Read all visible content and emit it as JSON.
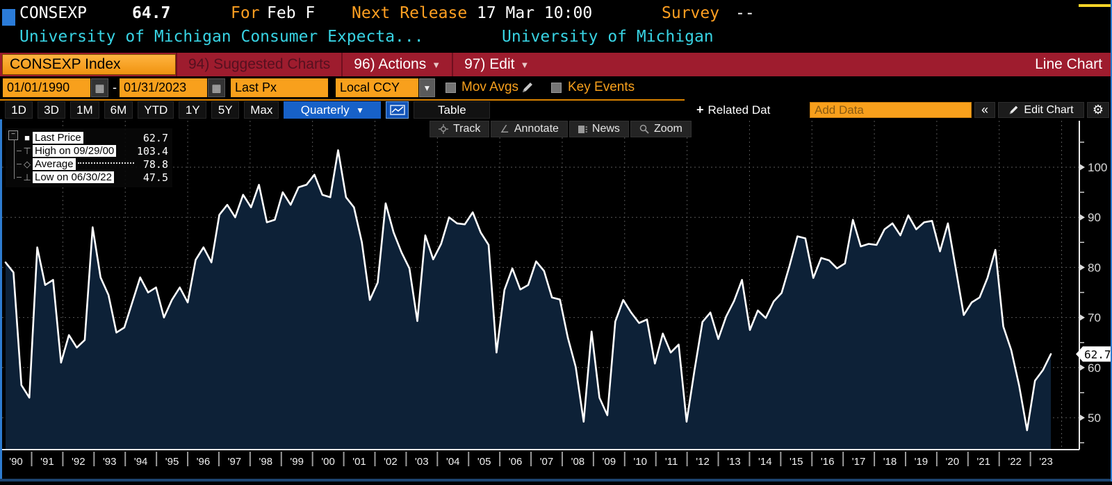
{
  "header": {
    "ticker": "CONSEXP",
    "last_value": "64.7",
    "for_label": "For",
    "for_value": "Feb F",
    "next_release_label": "Next Release",
    "next_release_value": "17 Mar 10:00",
    "survey_label": "Survey",
    "survey_value": "--",
    "description": "University of Michigan Consumer Expecta...",
    "source": "University of Michigan"
  },
  "command_bar": {
    "security_button": "CONSEXP Index",
    "suggested_charts": "94) Suggested Charts",
    "actions": "96) Actions",
    "edit": "97) Edit",
    "chart_type": "Line Chart"
  },
  "controls": {
    "start_date": "01/01/1990",
    "dash": "-",
    "end_date": "01/31/2023",
    "price_field": "Last Px",
    "currency": "Local CCY",
    "mov_avgs_label": "Mov Avgs",
    "key_events_label": "Key Events"
  },
  "toolbar": {
    "periods": [
      "1D",
      "3D",
      "1M",
      "6M",
      "YTD",
      "1Y",
      "5Y",
      "Max"
    ],
    "frequency": "Quarterly",
    "frequency_arrow": "▼",
    "table_label": "Table",
    "related_data_label": "Related Dat",
    "add_data_placeholder": "Add Data",
    "collapse_label": "«",
    "edit_chart_label": "Edit Chart"
  },
  "chart_tools": [
    "Track",
    "Annotate",
    "News",
    "Zoom"
  ],
  "legend": {
    "items": [
      {
        "label": "Last Price",
        "value": "62.7"
      },
      {
        "label": "High on 09/29/00",
        "value": "103.4"
      },
      {
        "label": "Average",
        "value": "78.8"
      },
      {
        "label": "Low on 06/30/22",
        "value": "47.5"
      }
    ]
  },
  "chart_data": {
    "type": "area",
    "title": "CONSEXP Index - University of Michigan Consumer Expectations",
    "frequency": "quarterly",
    "x_start": "1990-Q1",
    "x_end": "2023-Q1",
    "values": [
      81,
      79,
      56.5,
      54,
      84,
      76.5,
      77.5,
      61,
      66.5,
      64,
      65.5,
      88,
      78,
      74.5,
      67,
      68,
      73,
      78,
      75,
      76,
      70,
      73.5,
      76,
      73,
      81.5,
      84,
      81,
      90.5,
      92.5,
      90,
      94.5,
      92,
      96.5,
      89,
      89.5,
      95,
      92.5,
      96,
      96.5,
      98.5,
      94.5,
      94,
      103.4,
      94,
      92,
      85,
      73.5,
      77,
      92.8,
      87,
      83,
      79.8,
      69.3,
      86.4,
      81.6,
      84.7,
      90,
      88.8,
      88.6,
      91,
      87,
      84.5,
      63,
      75.5,
      79.8,
      75.6,
      76.5,
      81.2,
      79.3,
      74,
      73.6,
      66,
      60.1,
      49.2,
      67.2,
      54,
      50.5,
      69.2,
      73.5,
      71,
      68.9,
      69.6,
      60.8,
      66.8,
      63,
      64.6,
      49.2,
      59.5,
      69.1,
      71,
      65.7,
      70.2,
      73.3,
      77.5,
      67.5,
      71.4,
      69.9,
      73.2,
      74.9,
      80.3,
      86.2,
      85.8,
      77.9,
      81.9,
      81.4,
      79.8,
      80.8,
      89.5,
      84.2,
      84.7,
      84.5,
      87.6,
      88.8,
      86.4,
      90.4,
      87.6,
      89,
      89.3,
      83.2,
      88.8,
      79.7,
      70.5,
      73,
      74,
      77.9,
      83.5,
      68.2,
      63.5,
      56.4,
      47.5,
      57.4,
      59.5,
      62.7
    ],
    "x_labels": [
      "'90",
      "'91",
      "'92",
      "'93",
      "'94",
      "'95",
      "'96",
      "'97",
      "'98",
      "'99",
      "'00",
      "'01",
      "'02",
      "'03",
      "'04",
      "'05",
      "'06",
      "'07",
      "'08",
      "'09",
      "'10",
      "'11",
      "'12",
      "'13",
      "'14",
      "'15",
      "'16",
      "'17",
      "'18",
      "'19",
      "'20",
      "'21",
      "'22",
      "'23"
    ],
    "y_ticks": [
      50,
      60,
      70,
      80,
      90,
      100
    ],
    "y_minor_step": 5,
    "ylim": [
      44.5,
      107.5
    ],
    "grid": "dotted",
    "legend_position": "top-left",
    "last_price": 62.7,
    "last_price_label": "62.7",
    "high": 103.4,
    "average": 78.8,
    "low": 47.5
  },
  "colors": {
    "accent_orange": "#f8a01c",
    "header_orange": "#ff9f21",
    "cyan": "#38d3e3",
    "command_bar_red": "#9e1c2e",
    "selected_blue": "#1761c8",
    "chart_fill_navy": "#0d2137",
    "chart_line": "#ffffff",
    "axis_text": "#d9d9d9",
    "badge_bg": "#ffffff"
  }
}
